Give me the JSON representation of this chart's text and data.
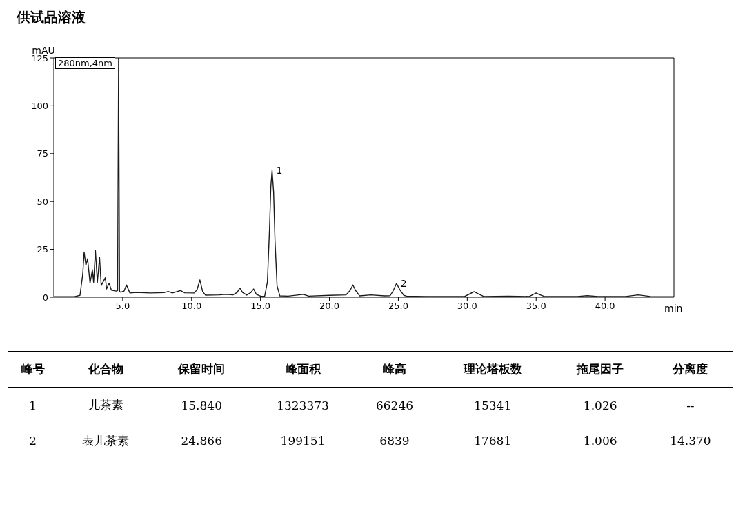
{
  "chart_data": {
    "type": "line",
    "title": "供试品溶液",
    "xlabel": "min",
    "ylabel": "mAU",
    "legend_title": "280nm,4nm",
    "x": [
      0,
      1.5,
      1.9,
      2.1,
      2.2,
      2.33,
      2.45,
      2.63,
      2.8,
      2.89,
      3.02,
      3.16,
      3.32,
      3.44,
      3.74,
      3.83,
      4.01,
      4.18,
      4.52,
      4.63,
      4.7,
      4.77,
      4.85,
      5.1,
      5.27,
      5.52,
      6,
      7,
      8,
      8.3,
      8.6,
      9.2,
      9.5,
      10.2,
      10.4,
      10.6,
      10.8,
      11,
      12,
      12.5,
      13,
      13.3,
      13.5,
      13.7,
      14,
      14.3,
      14.5,
      14.7,
      15,
      15.3,
      15.5,
      15.65,
      15.75,
      15.84,
      15.95,
      16.05,
      16.2,
      16.4,
      17,
      18.1,
      18.5,
      20,
      21.2,
      21.5,
      21.7,
      21.9,
      22.2,
      23,
      24,
      24.4,
      24.6,
      24.87,
      25.1,
      25.4,
      25.6,
      27,
      29.8,
      30.2,
      30.5,
      30.8,
      31.2,
      33,
      34.5,
      34.8,
      35,
      35.2,
      35.6,
      38,
      38.7,
      39.5,
      41.5,
      42.4,
      43.3,
      45
    ],
    "series": [
      {
        "color": "#1a1a1a",
        "values": [
          0.3,
          0.3,
          1,
          12,
          23.6,
          16.6,
          20.1,
          7.3,
          14.3,
          7.8,
          24.4,
          7.8,
          20.9,
          6.1,
          10.2,
          4.3,
          7.3,
          3.7,
          3.2,
          3.5,
          125,
          3,
          2.6,
          3.2,
          6.4,
          2.2,
          2.5,
          2.2,
          2.4,
          3,
          2.2,
          3.5,
          2.3,
          2.2,
          4,
          9,
          3,
          1.1,
          1.2,
          1.5,
          1.2,
          2.5,
          4.8,
          2.5,
          1.1,
          2.5,
          4.3,
          1.5,
          0.6,
          0.5,
          8,
          35,
          58,
          66.2,
          55,
          30,
          6,
          0.7,
          0.6,
          1.5,
          0.6,
          1,
          1.2,
          3.5,
          6.4,
          3.5,
          0.7,
          1.2,
          0.7,
          0.8,
          3,
          7.2,
          4,
          1,
          0.6,
          0.4,
          0.4,
          1.8,
          2.9,
          1.8,
          0.4,
          0.6,
          0.4,
          1.5,
          2.2,
          1.5,
          0.4,
          0.4,
          0.8,
          0.4,
          0.4,
          1.2,
          0.4,
          0.3
        ]
      }
    ],
    "xlim": [
      0,
      45
    ],
    "xticks": [
      {
        "value": 5,
        "label": "5.0"
      },
      {
        "value": 10,
        "label": "10.0"
      },
      {
        "value": 15,
        "label": "15.0"
      },
      {
        "value": 20,
        "label": "20.0"
      },
      {
        "value": 25,
        "label": "25.0"
      },
      {
        "value": 30,
        "label": "30.0"
      },
      {
        "value": 35,
        "label": "35.0"
      },
      {
        "value": 40,
        "label": "40.0"
      }
    ],
    "ylim": [
      0,
      125
    ],
    "yticks": [
      0,
      25,
      50,
      75,
      100,
      125
    ],
    "marker": "none",
    "line_style": "solid",
    "annotations": [
      {
        "text": "1",
        "x": 15.84,
        "y": 66.2
      },
      {
        "text": "2",
        "x": 24.87,
        "y": 7.2
      },
      "峰号",
      "化合物",
      "保留时间",
      "峰面积",
      "峰高",
      "理论塔板数",
      "拖尾因子",
      "分离度",
      "1",
      "儿茶素",
      "15.840",
      "1323373",
      "66246",
      "15341",
      "1.026",
      "--",
      "2",
      "表儿茶素",
      "24.866",
      "199151",
      "6839",
      "17681",
      "1.006",
      "14.370"
    ]
  }
}
